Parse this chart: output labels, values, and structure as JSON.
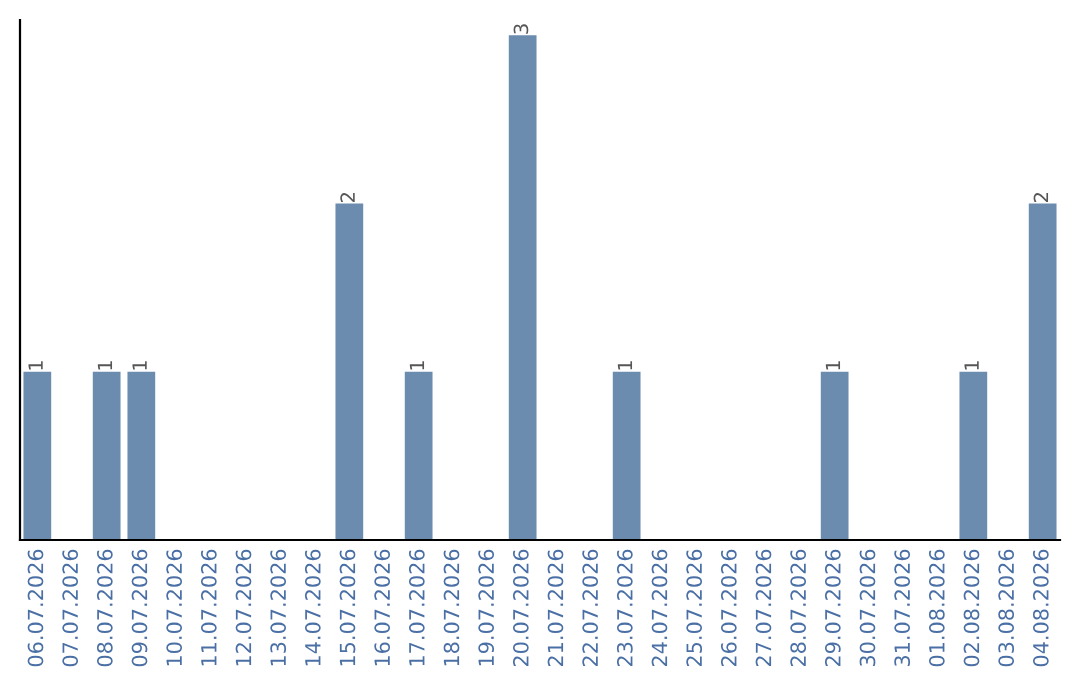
{
  "chart_data": {
    "type": "bar",
    "categories": [
      "06.07.2026",
      "07.07.2026",
      "08.07.2026",
      "09.07.2026",
      "10.07.2026",
      "11.07.2026",
      "12.07.2026",
      "13.07.2026",
      "14.07.2026",
      "15.07.2026",
      "16.07.2026",
      "17.07.2026",
      "18.07.2026",
      "19.07.2026",
      "20.07.2026",
      "21.07.2026",
      "22.07.2026",
      "23.07.2026",
      "24.07.2026",
      "25.07.2026",
      "26.07.2026",
      "27.07.2026",
      "28.07.2026",
      "29.07.2026",
      "30.07.2026",
      "31.07.2026",
      "01.08.2026",
      "02.08.2026",
      "03.08.2026",
      "04.08.2026"
    ],
    "values": [
      1,
      0,
      1,
      1,
      0,
      0,
      0,
      0,
      0,
      2,
      0,
      1,
      0,
      0,
      3,
      0,
      0,
      1,
      0,
      0,
      0,
      0,
      0,
      1,
      0,
      0,
      0,
      1,
      0,
      2
    ],
    "value_labels": [
      "1",
      null,
      "1",
      "1",
      null,
      null,
      null,
      null,
      null,
      "2",
      null,
      "1",
      null,
      null,
      "3",
      null,
      null,
      "1",
      null,
      null,
      null,
      null,
      null,
      "1",
      null,
      null,
      null,
      "1",
      null,
      "2"
    ],
    "color": "#6b8cae",
    "grid": false,
    "legend": false
  }
}
